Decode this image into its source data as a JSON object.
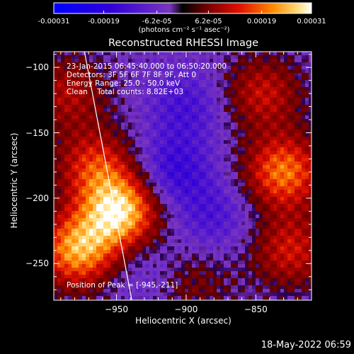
{
  "chart_data": {
    "type": "heatmap",
    "title": "Reconstructed RHESSI Image",
    "xlabel": "Heliocentric X (arcsec)",
    "ylabel": "Heliocentric Y (arcsec)",
    "xlim": [
      -995,
      -810
    ],
    "ylim": [
      -278,
      -88
    ],
    "x_ticks": [
      -950,
      -900,
      -850
    ],
    "y_ticks": [
      -100,
      -150,
      -200,
      -250
    ],
    "colorbar": {
      "min": -0.00031,
      "max": 0.00031,
      "tick_labels": [
        "-0.00031",
        "-0.00019",
        "-6.2e-05",
        "6.2e-05",
        "0.00019",
        "0.00031"
      ],
      "tick_values": [
        -0.00031,
        -0.00019,
        -6.2e-05,
        6.2e-05,
        0.00019,
        0.00031
      ],
      "unit_label": "(photons cm⁻² s⁻¹ asec⁻²)"
    },
    "annotations": {
      "time_range": "23-Jan-2015 06:45:40.000 to 06:50:20.000",
      "detectors": "Detectors: 3F 5F 6F 7F 8F 9F, Att 0",
      "energy": "Energy Range: 25.0 - 50.0 keV",
      "method": "Clean    Total counts: 8.82E+03",
      "peak": "Position of Peak = [-945,-211]"
    },
    "peak_position": [
      -945,
      -211
    ],
    "limb_line": [
      [
        -973,
        -88
      ],
      [
        -939,
        -278
      ]
    ],
    "sources": [
      {
        "x": -947,
        "y": -210,
        "value": 0.00031
      },
      {
        "x": -978,
        "y": -240,
        "value": 0.00027
      },
      {
        "x": -965,
        "y": -175,
        "value": 0.00018
      },
      {
        "x": -985,
        "y": -120,
        "value": 0.00013
      },
      {
        "x": -830,
        "y": -180,
        "value": 0.00024
      },
      {
        "x": -845,
        "y": -120,
        "value": 0.00015
      },
      {
        "x": -825,
        "y": -240,
        "value": 0.00016
      },
      {
        "x": -895,
        "y": -265,
        "value": 8e-05
      },
      {
        "x": -910,
        "y": -180,
        "value": -0.00012
      },
      {
        "x": -900,
        "y": -130,
        "value": -9e-05
      },
      {
        "x": -880,
        "y": -215,
        "value": -8e-05
      },
      {
        "x": -930,
        "y": -255,
        "value": -5e-05
      }
    ]
  },
  "footer": {
    "timestamp": "18-May-2022 06:59"
  }
}
